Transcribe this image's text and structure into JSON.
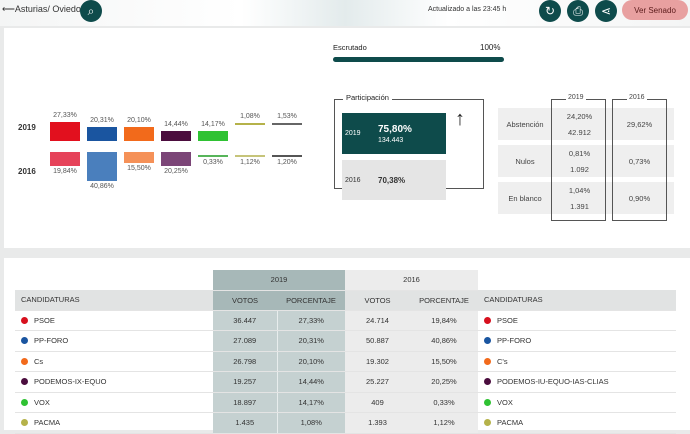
{
  "header": {
    "back_label": "Asturias/ Oviedo",
    "updated": "Actualizado a las 23:45 h",
    "senado_button": "Ver Senado"
  },
  "escrutado": {
    "label": "Escrutado",
    "value": "100%",
    "fraction": 1.0
  },
  "chart": {
    "years": [
      "2019",
      "2016"
    ],
    "parties": [
      {
        "color": "#e2101e",
        "color16": "#e6435a",
        "p2019": 27.33,
        "l2019": "27,33%",
        "p2016": 19.84,
        "l2016": "19,84%"
      },
      {
        "color": "#1a55a0",
        "color16": "#4a7fbd",
        "p2019": 20.31,
        "l2019": "20,31%",
        "p2016": 40.86,
        "l2016": "40,86%"
      },
      {
        "color": "#f26a1b",
        "color16": "#f59158",
        "p2019": 20.1,
        "l2019": "20,10%",
        "p2016": 15.5,
        "l2016": "15,50%"
      },
      {
        "color": "#4b0d3e",
        "color16": "#7b4577",
        "p2019": 14.44,
        "l2019": "14,44%",
        "p2016": 20.25,
        "l2016": "20,25%"
      },
      {
        "color": "#2fc233",
        "color16": "#57b55a",
        "p2019": 14.17,
        "l2019": "14,17%",
        "p2016": 0.33,
        "l2016": "0,33%"
      },
      {
        "color": "#b5b24a",
        "color16": "#c6c47a",
        "p2019": 1.08,
        "l2019": "1,08%",
        "p2016": 1.12,
        "l2016": "1,12%"
      },
      {
        "color": "#666666",
        "color16": "#555555",
        "p2019": 1.53,
        "l2019": "1,53%",
        "p2016": 1.2,
        "l2016": "1,20%"
      }
    ]
  },
  "participacion": {
    "title": "Participación",
    "y2019": "2019",
    "pct2019": "75,80%",
    "votes2019": "134.443",
    "y2016": "2016",
    "pct2016": "70,38%",
    "trend": "up"
  },
  "stats": {
    "y2019": "2019",
    "y2016": "2016",
    "rows": [
      {
        "label": "Abstención",
        "p2019": "24,20%",
        "v2019": "42.912",
        "p2016": "29,62%"
      },
      {
        "label": "Nulos",
        "p2019": "0,81%",
        "v2019": "1.092",
        "p2016": "0,73%"
      },
      {
        "label": "En blanco",
        "p2019": "1,04%",
        "v2019": "1.391",
        "p2016": "0,90%"
      }
    ]
  },
  "table": {
    "y2019": "2019",
    "y2016": "2016",
    "headers": [
      "CANDIDATURAS",
      "VOTOS",
      "PORCENTAJE",
      "VOTOS",
      "PORCENTAJE",
      "CANDIDATURAS"
    ],
    "rows": [
      {
        "color": "#d7101e",
        "name": "PSOE",
        "v19": "36.447",
        "p19": "27,33%",
        "v16": "24.714",
        "p16": "19,84%",
        "name16": "PSOE"
      },
      {
        "color": "#1a55a0",
        "name": "PP-FORO",
        "v19": "27.089",
        "p19": "20,31%",
        "v16": "50.887",
        "p16": "40,86%",
        "name16": "PP-FORO"
      },
      {
        "color": "#f26a1b",
        "name": "Cs",
        "v19": "26.798",
        "p19": "20,10%",
        "v16": "19.302",
        "p16": "15,50%",
        "name16": "C's"
      },
      {
        "color": "#4b0d3e",
        "name": "PODEMOS-IX-EQUO",
        "v19": "19.257",
        "p19": "14,44%",
        "v16": "25.227",
        "p16": "20,25%",
        "name16": "PODEMOS-IU-EQUO-IAS-CLIAS"
      },
      {
        "color": "#2fc233",
        "name": "VOX",
        "v19": "18.897",
        "p19": "14,17%",
        "v16": "409",
        "p16": "0,33%",
        "name16": "VOX"
      },
      {
        "color": "#b5b24a",
        "name": "PACMA",
        "v19": "1.435",
        "p19": "1,08%",
        "v16": "1.393",
        "p16": "1,12%",
        "name16": "PACMA"
      }
    ]
  }
}
